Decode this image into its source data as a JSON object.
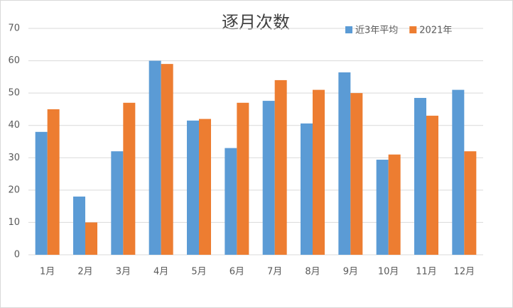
{
  "chart_data": {
    "type": "bar",
    "title": "逐月次数",
    "categories": [
      "1月",
      "2月",
      "3月",
      "4月",
      "5月",
      "6月",
      "7月",
      "8月",
      "9月",
      "10月",
      "11月",
      "12月"
    ],
    "series": [
      {
        "name": "近3年平均",
        "color": "#5b9bd5",
        "values": [
          38,
          18,
          32,
          60,
          41.5,
          33,
          47.6,
          40.6,
          56.4,
          29.4,
          48.5,
          51
        ]
      },
      {
        "name": "2021年",
        "color": "#ed7d31",
        "values": [
          45,
          10,
          47,
          59,
          42,
          47,
          54,
          51,
          50,
          31,
          43,
          32
        ]
      }
    ],
    "ylim": [
      0,
      70
    ],
    "yticks": [
      0,
      10,
      20,
      30,
      40,
      50,
      60,
      70
    ],
    "grid": true
  }
}
